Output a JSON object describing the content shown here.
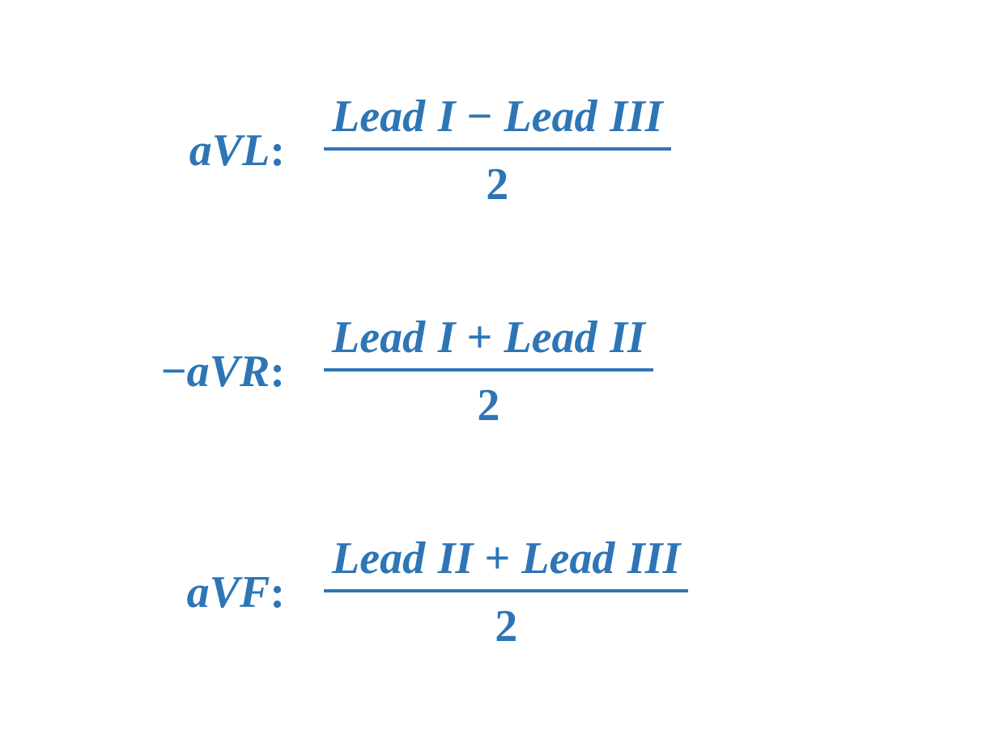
{
  "style": {
    "text_color": "#2e75b6",
    "fraction_bar_color": "#2e75b6",
    "background_color": "#ffffff",
    "font_family": "Cambria Math, Times New Roman, Georgia, serif",
    "font_style": "italic",
    "font_weight": "bold",
    "label_fontsize": 56,
    "numerator_fontsize": 56,
    "denominator_fontsize": 56,
    "fraction_bar_height": 4
  },
  "equations": [
    {
      "label_prefix": "",
      "label_lead": "aVL",
      "label_suffix": ":",
      "numerator_left_word": "Lead",
      "numerator_left_roman": "I",
      "operator": "−",
      "numerator_right_word": "Lead",
      "numerator_right_roman": "III",
      "denominator": "2"
    },
    {
      "label_prefix": "−",
      "label_lead": "aVR",
      "label_suffix": ":",
      "numerator_left_word": "Lead",
      "numerator_left_roman": "I",
      "operator": "+",
      "numerator_right_word": "Lead",
      "numerator_right_roman": "II",
      "denominator": "2"
    },
    {
      "label_prefix": "",
      "label_lead": "aVF",
      "label_suffix": ":",
      "numerator_left_word": "Lead",
      "numerator_left_roman": "II",
      "operator": "+",
      "numerator_right_word": "Lead",
      "numerator_right_roman": "III",
      "denominator": "2"
    }
  ]
}
